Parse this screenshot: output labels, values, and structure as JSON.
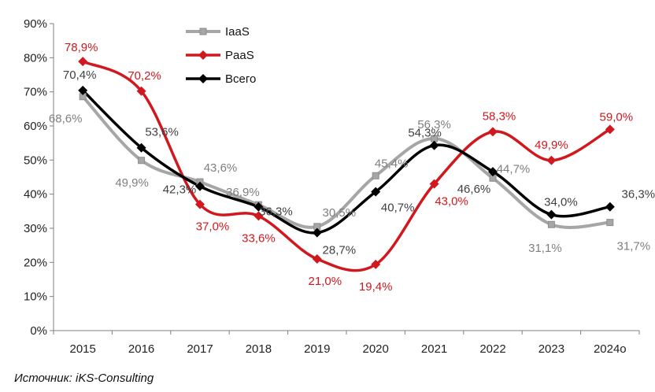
{
  "chart_data": {
    "type": "line",
    "categories": [
      "2015",
      "2016",
      "2017",
      "2018",
      "2019",
      "2020",
      "2021",
      "2022",
      "2023",
      "2024о"
    ],
    "ylim": [
      0,
      90
    ],
    "yticks": [
      "0%",
      "10%",
      "20%",
      "30%",
      "40%",
      "50%",
      "60%",
      "70%",
      "80%",
      "90%"
    ],
    "grid": false,
    "legend_position": "top-center",
    "series": [
      {
        "name": "IaaS",
        "color": "#a6a6a6",
        "marker": "square",
        "values": [
          68.6,
          49.9,
          43.6,
          36.9,
          30.5,
          45.4,
          56.3,
          44.7,
          31.1,
          31.7
        ],
        "labels": [
          "68,6%",
          "49,9%",
          "43,6%",
          "36,9%",
          "30,5%",
          "45,4%",
          "56,3%",
          "44,7%",
          "31,1%",
          "31,7%"
        ]
      },
      {
        "name": "PaaS",
        "color": "#d0181e",
        "marker": "diamond",
        "values": [
          78.9,
          70.2,
          37.0,
          33.6,
          21.0,
          19.4,
          43.0,
          58.3,
          49.9,
          59.0
        ],
        "labels": [
          "78,9%",
          "70,2%",
          "37,0%",
          "33,6%",
          "21,0%",
          "19,4%",
          "43,0%",
          "58,3%",
          "49,9%",
          "59,0%"
        ]
      },
      {
        "name": "Всего",
        "color": "#000000",
        "marker": "diamond",
        "values": [
          70.4,
          53.6,
          42.3,
          36.3,
          28.7,
          40.7,
          54.3,
          46.6,
          34.0,
          36.3
        ],
        "labels": [
          "70,4%",
          "53,6%",
          "42,3%",
          "36,3%",
          "28,7%",
          "40,7%",
          "54,3%",
          "46,6%",
          "34,0%",
          "36,3%"
        ]
      }
    ]
  },
  "source": "Источник: iKS-Consulting"
}
